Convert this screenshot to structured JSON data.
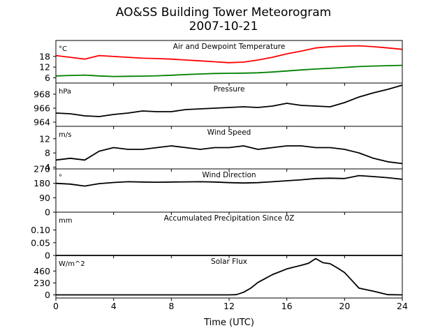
{
  "figure": {
    "title_line1": "AO&SS Building Tower Meteorogram",
    "title_line2": "2007-10-21",
    "xlabel": "Time (UTC)"
  },
  "chart_data": [
    {
      "type": "line",
      "title": "Air and Dewpoint Temperature",
      "unit": "°C",
      "x": [
        0,
        1,
        2,
        3,
        4,
        5,
        6,
        7,
        8,
        9,
        10,
        11,
        12,
        13,
        14,
        15,
        16,
        17,
        18,
        19,
        20,
        21,
        22,
        23,
        24
      ],
      "series": [
        {
          "values": [
            18.5,
            17.5,
            16.5,
            18.5,
            18.0,
            17.5,
            17.0,
            16.8,
            16.5,
            16.0,
            15.5,
            15.0,
            14.5,
            14.8,
            16.0,
            17.5,
            19.5,
            21.0,
            22.8,
            23.5,
            23.8,
            24.0,
            23.5,
            22.8,
            22.0
          ],
          "color": "#ff0000"
        },
        {
          "values": [
            7.0,
            7.3,
            7.5,
            7.0,
            6.7,
            6.8,
            6.9,
            7.1,
            7.4,
            7.8,
            8.1,
            8.4,
            8.5,
            8.6,
            8.8,
            9.2,
            9.8,
            10.4,
            10.9,
            11.3,
            11.8,
            12.3,
            12.6,
            12.8,
            13.0
          ],
          "color": "#008000"
        }
      ],
      "yticks": [
        6,
        12,
        18
      ],
      "ylim": [
        3,
        27
      ]
    },
    {
      "type": "line",
      "title": "Pressure",
      "unit": "hPa",
      "x": [
        0,
        1,
        2,
        3,
        4,
        5,
        6,
        7,
        8,
        9,
        10,
        11,
        12,
        13,
        14,
        15,
        16,
        17,
        18,
        19,
        20,
        21,
        22,
        23,
        24
      ],
      "series": [
        {
          "values": [
            965.3,
            965.2,
            964.9,
            964.8,
            965.1,
            965.3,
            965.6,
            965.5,
            965.5,
            965.8,
            965.9,
            966.0,
            966.1,
            966.2,
            966.1,
            966.3,
            966.7,
            966.4,
            966.3,
            966.2,
            966.8,
            967.6,
            968.2,
            968.7,
            969.3
          ],
          "color": "#000000"
        }
      ],
      "yticks": [
        964,
        966,
        968
      ],
      "ylim": [
        963.4,
        969.6
      ]
    },
    {
      "type": "line",
      "title": "Wind Speed",
      "unit": "m/s",
      "x": [
        0,
        1,
        2,
        3,
        4,
        5,
        6,
        7,
        8,
        9,
        10,
        11,
        12,
        13,
        14,
        15,
        16,
        17,
        18,
        19,
        20,
        21,
        22,
        23,
        24
      ],
      "series": [
        {
          "values": [
            6.0,
            6.5,
            6.0,
            8.5,
            9.5,
            9.0,
            9.0,
            9.5,
            10.0,
            9.5,
            9.0,
            9.5,
            9.5,
            10.0,
            9.0,
            9.5,
            10.0,
            10.0,
            9.5,
            9.5,
            9.0,
            8.0,
            6.5,
            5.5,
            5.0
          ],
          "color": "#000000"
        }
      ],
      "yticks": [
        4,
        8,
        12
      ],
      "ylim": [
        3.5,
        15.5
      ]
    },
    {
      "type": "line",
      "title": "Wind Direction",
      "unit": "°",
      "x": [
        0,
        1,
        2,
        3,
        4,
        5,
        6,
        7,
        8,
        9,
        10,
        11,
        12,
        13,
        14,
        15,
        16,
        17,
        18,
        19,
        20,
        21,
        22,
        23,
        24
      ],
      "series": [
        {
          "values": [
            180,
            175,
            163,
            178,
            185,
            190,
            188,
            187,
            188,
            189,
            190,
            188,
            184,
            182,
            184,
            190,
            196,
            202,
            210,
            212,
            210,
            228,
            222,
            215,
            205
          ],
          "color": "#000000"
        }
      ],
      "yticks": [
        0,
        90,
        180,
        270
      ],
      "ylim": [
        0,
        270
      ]
    },
    {
      "type": "line",
      "title": "Accumulated Precipitation Since 0Z",
      "unit": "mm",
      "x": [
        0,
        24
      ],
      "series": [
        {
          "values": [
            0.0,
            0.0
          ],
          "color": "#000000"
        }
      ],
      "yticks": [
        0.0,
        0.05,
        0.1
      ],
      "ylim": [
        0,
        0.17
      ]
    },
    {
      "type": "line",
      "title": "Solar Flux",
      "unit": "W/m^2",
      "x": [
        0,
        11,
        12,
        12.5,
        13,
        13.5,
        14,
        15,
        16,
        17,
        17.5,
        18,
        18.5,
        19,
        19.5,
        20,
        20.5,
        21,
        22,
        23,
        24
      ],
      "series": [
        {
          "values": [
            0,
            0,
            0,
            5,
            50,
            130,
            240,
            390,
            500,
            570,
            610,
            700,
            620,
            600,
            520,
            430,
            280,
            130,
            70,
            5,
            0
          ],
          "color": "#000000"
        }
      ],
      "yticks": [
        0,
        230,
        460
      ],
      "ylim": [
        -60,
        760
      ]
    }
  ]
}
